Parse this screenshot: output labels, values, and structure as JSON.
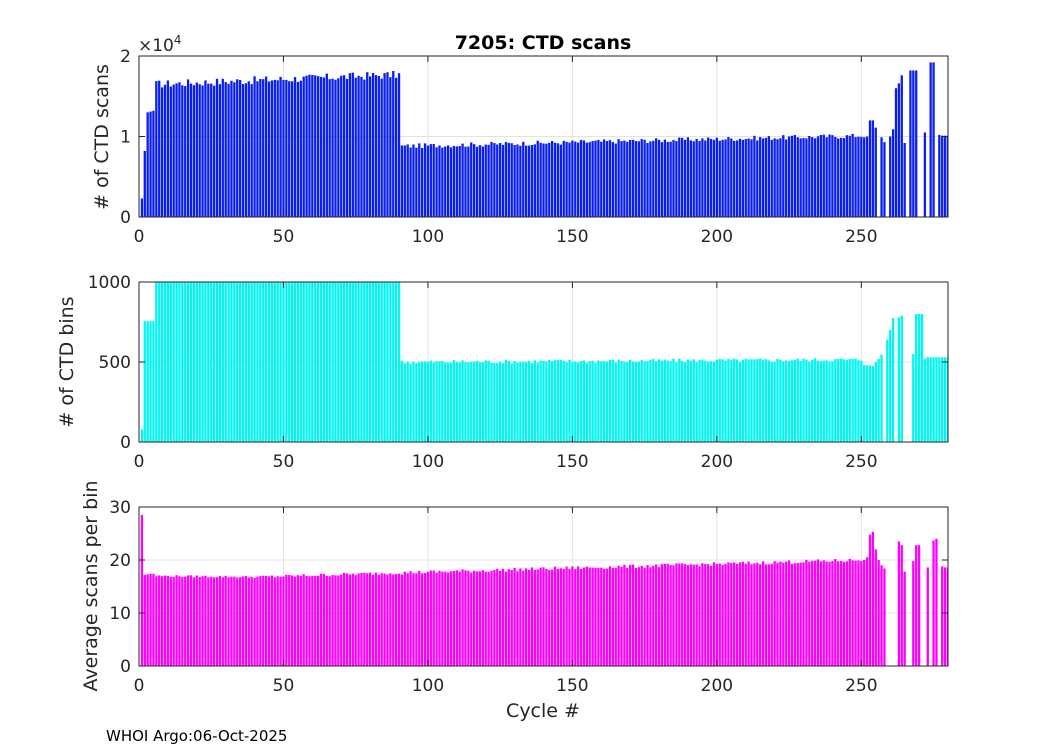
{
  "figure": {
    "title": "7205: CTD scans",
    "xlabel": "Cycle #",
    "footer": "WHOI Argo:06-Oct-2025",
    "exponent_prefix": "×10",
    "exponent_power": "4"
  },
  "chart_data": [
    {
      "type": "bar",
      "name": "scans",
      "ylabel": "# of CTD scans",
      "color": "#0a1ef0",
      "xlim": [
        0,
        280
      ],
      "ylim": [
        0,
        2
      ],
      "xticks": [
        "0",
        "50",
        "100",
        "150",
        "200",
        "250"
      ],
      "yticks": [
        "0",
        "1",
        "2"
      ],
      "units_note": "values in units of 10^4 scans",
      "segments": [
        {
          "x_start": 1,
          "values": [
            0.23,
            0.82,
            1.3,
            1.31,
            1.32
          ]
        },
        {
          "x_start": 6,
          "x_end": 90,
          "start": 1.65,
          "end": 1.77,
          "jitter": 0.05
        },
        {
          "x_start": 91,
          "x_end": 250,
          "start": 0.88,
          "end": 1.01,
          "jitter": 0.03
        },
        {
          "x_start": 251,
          "values": [
            0.99,
            1.0,
            1.2,
            1.2,
            1.11,
            0.0,
            0.99,
            0.93,
            0.0,
            1.0,
            1.09,
            1.6,
            1.66,
            1.76,
            0.92,
            0.0,
            1.82,
            1.82,
            1.82,
            0.0,
            0.0,
            1.05,
            0.0,
            1.92,
            1.92,
            0.0,
            1.02,
            1.01,
            1.01,
            1.01
          ]
        }
      ]
    },
    {
      "type": "bar",
      "name": "bins",
      "ylabel": "# of CTD bins",
      "color": "#00f7f0",
      "xlim": [
        0,
        280
      ],
      "ylim": [
        0,
        1000
      ],
      "xticks": [
        "0",
        "50",
        "100",
        "150",
        "200",
        "250"
      ],
      "yticks": [
        "0",
        "500",
        "1000"
      ],
      "segments": [
        {
          "x_start": 1,
          "values": [
            80,
            755,
            755,
            755,
            755
          ]
        },
        {
          "x_start": 6,
          "x_end": 90,
          "start": 1000,
          "end": 1000,
          "jitter": 0
        },
        {
          "x_start": 91,
          "x_end": 250,
          "start": 500,
          "end": 515,
          "jitter": 12
        },
        {
          "x_start": 251,
          "values": [
            480,
            480,
            478,
            475,
            500,
            520,
            545,
            0,
            640,
            700,
            775,
            0,
            780,
            790,
            0,
            0,
            0,
            550,
            800,
            800,
            800,
            520,
            530,
            530,
            530,
            530,
            530,
            530,
            530,
            530
          ]
        }
      ]
    },
    {
      "type": "bar",
      "name": "average",
      "ylabel": "Average scans per bin",
      "color": "#ff00ff",
      "xlim": [
        0,
        280
      ],
      "ylim": [
        0,
        30
      ],
      "xticks": [
        "0",
        "50",
        "100",
        "150",
        "200",
        "250"
      ],
      "yticks": [
        "0",
        "10",
        "20",
        "30"
      ],
      "segments": [
        {
          "x_start": 1,
          "values": [
            28.5,
            17.2,
            17.3,
            17.4,
            17.4
          ]
        },
        {
          "x_start": 6,
          "x_end": 40,
          "start": 17.0,
          "end": 16.8,
          "jitter": 0.2
        },
        {
          "x_start": 41,
          "x_end": 90,
          "start": 16.8,
          "end": 17.6,
          "jitter": 0.3
        },
        {
          "x_start": 91,
          "x_end": 250,
          "start": 17.6,
          "end": 20.0,
          "jitter": 0.35
        },
        {
          "x_start": 251,
          "values": [
            20.0,
            20.5,
            24.8,
            25.3,
            22.0,
            20.0,
            19.0,
            18.4,
            0,
            0,
            0,
            0,
            23.5,
            22.8,
            17.8,
            0,
            0,
            19.8,
            22.8,
            22.8,
            0,
            0,
            18.6,
            0,
            23.7,
            24.0,
            0,
            18.8,
            18.6,
            18.6
          ]
        }
      ]
    }
  ]
}
